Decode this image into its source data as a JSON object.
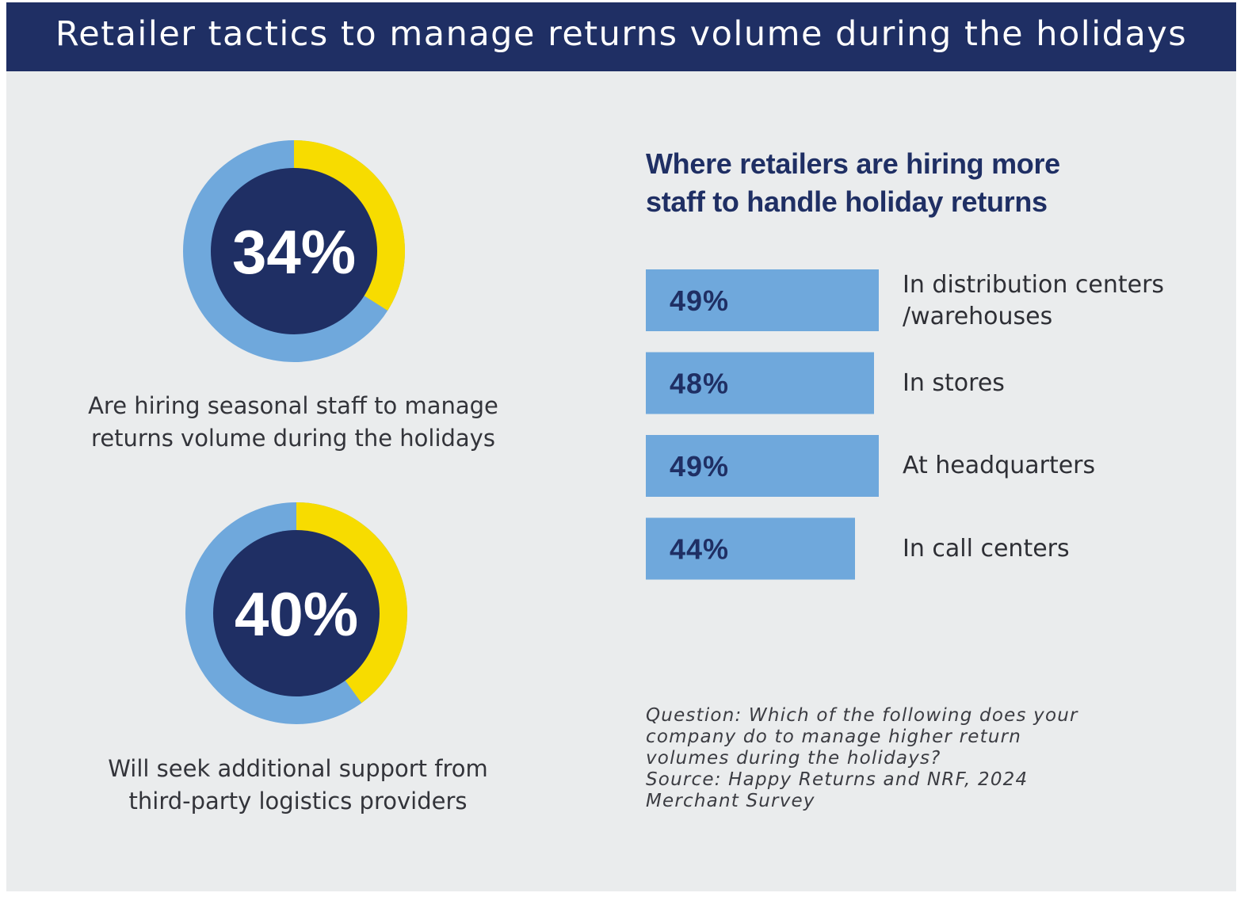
{
  "header": {
    "title": "Retailer tactics to manage returns volume during the holidays"
  },
  "colors": {
    "navy": "#1f2f64",
    "light_blue": "#6fa8dc",
    "yellow": "#f7dc00",
    "background": "#eaeced"
  },
  "donuts": [
    {
      "value_label": "34%",
      "value": 34,
      "caption_lines": [
        "Are hiring seasonal staff to manage",
        "returns volume during the holidays"
      ]
    },
    {
      "value_label": "40%",
      "value": 40,
      "caption_lines": [
        "Will seek additional support from",
        "third-party logistics providers"
      ]
    }
  ],
  "bars_section": {
    "title_lines": [
      "Where retailers are hiring more",
      "staff to handle holiday returns"
    ]
  },
  "chart_data": [
    {
      "type": "pie",
      "values": [
        34,
        66
      ],
      "value_label": "34%",
      "caption": "Are hiring seasonal staff to manage returns volume during the holidays"
    },
    {
      "type": "pie",
      "values": [
        40,
        60
      ],
      "value_label": "40%",
      "caption": "Will seek additional support from third-party logistics providers"
    },
    {
      "type": "bar",
      "title": "Where retailers are hiring more staff to handle holiday returns",
      "categories": [
        "In distribution centers /warehouses",
        "In stores",
        "At headquarters",
        "In call centers"
      ],
      "category_lines": [
        [
          "In distribution centers",
          "/warehouses"
        ],
        [
          "In stores"
        ],
        [
          "At headquarters"
        ],
        [
          "In call centers"
        ]
      ],
      "values": [
        49,
        48,
        49,
        44
      ],
      "data_labels": [
        "49%",
        "48%",
        "49%",
        "44%"
      ]
    }
  ],
  "note": {
    "lines": [
      "Question: Which of the following does your",
      "company do to manage higher return",
      "volumes during the holidays?",
      "Source: Happy Returns and NRF, 2024",
      "Merchant Survey"
    ]
  }
}
